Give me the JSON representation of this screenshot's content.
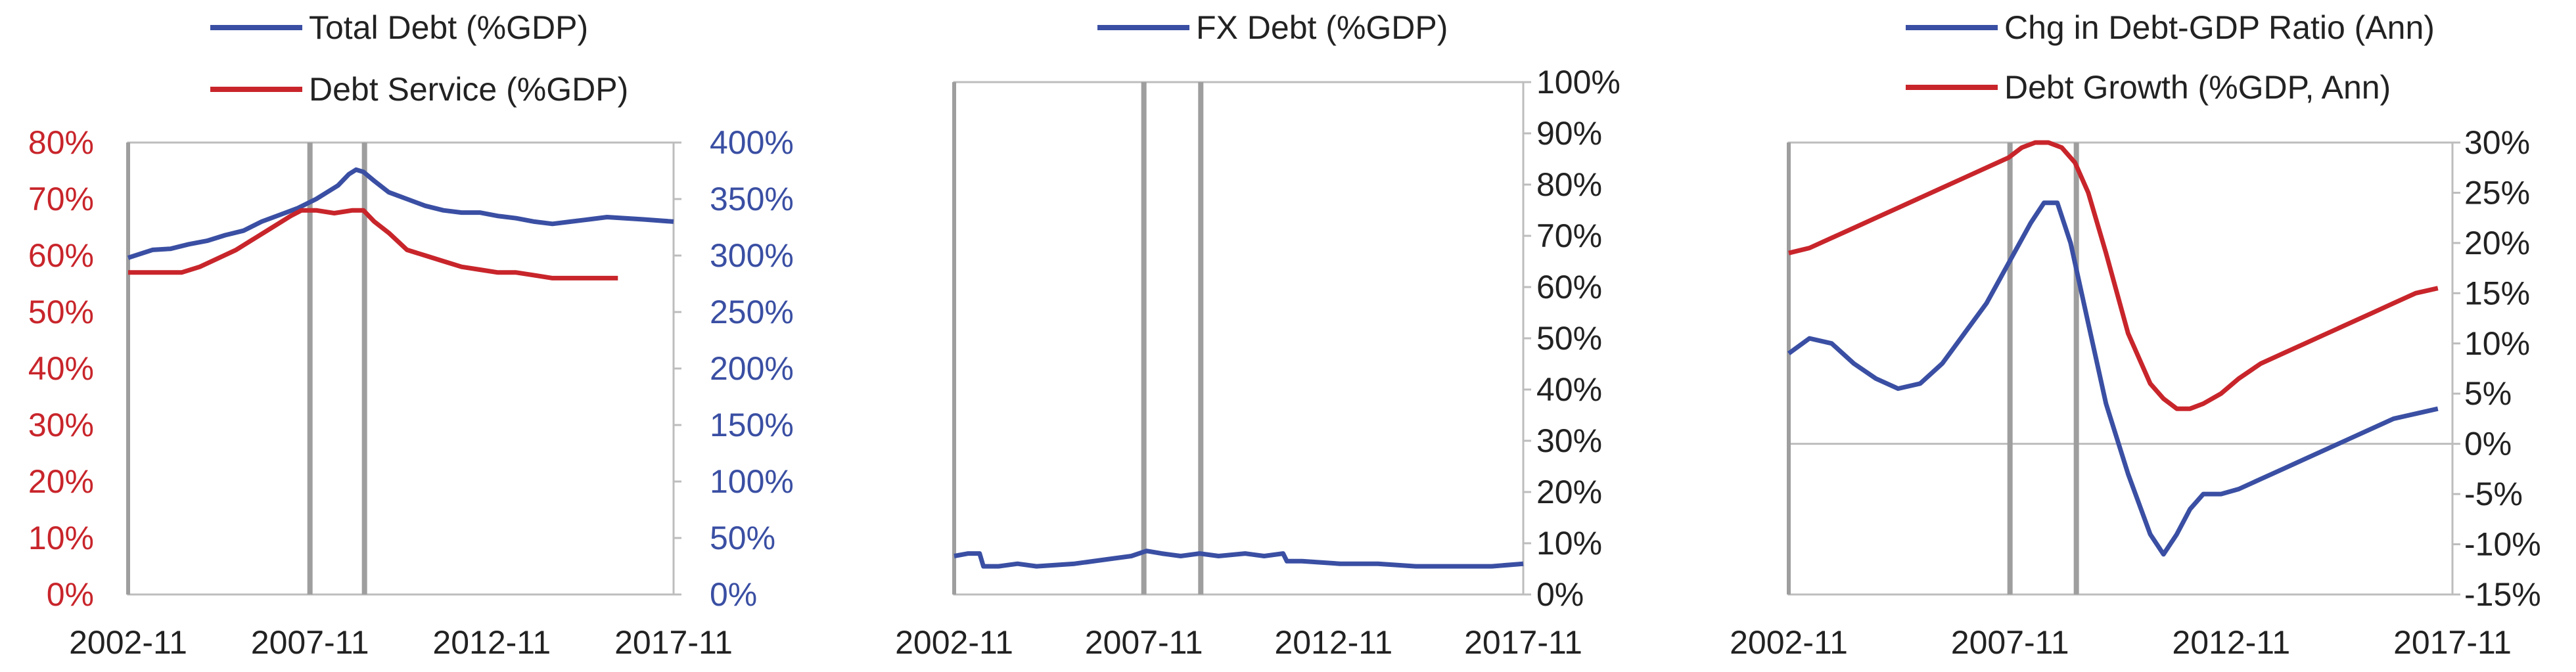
{
  "chart_data": [
    {
      "type": "line",
      "legend": [
        "Total Debt (%GDP)",
        "Debt Service (%GDP)"
      ],
      "left_axis": {
        "ticks": [
          "0%",
          "10%",
          "20%",
          "30%",
          "40%",
          "50%",
          "60%",
          "70%",
          "80%"
        ],
        "range": [
          0,
          80
        ]
      },
      "right_axis": {
        "ticks": [
          "0%",
          "50%",
          "100%",
          "150%",
          "200%",
          "250%",
          "300%",
          "350%",
          "400%"
        ],
        "range": [
          0,
          400
        ]
      },
      "x_ticks": [
        "2002-11",
        "2007-11",
        "2012-11",
        "2017-11"
      ],
      "x_range": [
        2002.83,
        2017.83
      ],
      "vlines": [
        2007.83,
        2009.33
      ],
      "series": [
        {
          "name": "Total Debt (%GDP)",
          "axis": "right",
          "color": "#3a4fa3",
          "x": [
            2002.83,
            2003.5,
            2004,
            2004.5,
            2005,
            2005.5,
            2006,
            2006.5,
            2007,
            2007.5,
            2008,
            2008.3,
            2008.6,
            2008.9,
            2009.1,
            2009.3,
            2009.6,
            2010,
            2010.5,
            2011,
            2011.5,
            2012,
            2012.5,
            2013,
            2013.5,
            2014,
            2014.5,
            2015,
            2015.5,
            2016,
            2016.5,
            2017,
            2017.83
          ],
          "y": [
            298,
            305,
            306,
            310,
            313,
            318,
            322,
            330,
            336,
            342,
            350,
            356,
            362,
            372,
            376,
            374,
            366,
            356,
            350,
            344,
            340,
            338,
            338,
            335,
            333,
            330,
            328,
            330,
            332,
            334,
            333,
            332,
            330
          ]
        },
        {
          "name": "Debt Service (%GDP)",
          "axis": "left",
          "color": "#c8252b",
          "x": [
            2002.83,
            2003.3,
            2003.8,
            2004.3,
            2004.8,
            2005.3,
            2005.8,
            2006.3,
            2006.8,
            2007.3,
            2007.6,
            2008,
            2008.5,
            2009,
            2009.3,
            2009.6,
            2010,
            2010.5,
            2011,
            2011.5,
            2012,
            2012.5,
            2013,
            2013.5,
            2014,
            2014.5,
            2015,
            2015.5,
            2016,
            2016.3
          ],
          "y": [
            57,
            57,
            57,
            57,
            58,
            59.5,
            61,
            63,
            65,
            67,
            68,
            68,
            67.5,
            68,
            68,
            66,
            64,
            61,
            60,
            59,
            58,
            57.5,
            57,
            57,
            56.5,
            56,
            56,
            56,
            56,
            56
          ]
        }
      ]
    },
    {
      "type": "line",
      "legend": [
        "FX Debt (%GDP)"
      ],
      "right_axis": {
        "ticks": [
          "0%",
          "10%",
          "20%",
          "30%",
          "40%",
          "50%",
          "60%",
          "70%",
          "80%",
          "90%",
          "100%"
        ],
        "range": [
          0,
          100
        ]
      },
      "x_ticks": [
        "2002-11",
        "2007-11",
        "2012-11",
        "2017-11"
      ],
      "x_range": [
        2002.83,
        2017.83
      ],
      "vlines": [
        2007.83,
        2009.33
      ],
      "series": [
        {
          "name": "FX Debt (%GDP)",
          "axis": "right",
          "color": "#3a4fa3",
          "x": [
            2002.83,
            2003.2,
            2003.5,
            2003.6,
            2004,
            2004.5,
            2005,
            2006,
            2007,
            2007.5,
            2007.9,
            2008.3,
            2008.8,
            2009.3,
            2009.8,
            2010.5,
            2011,
            2011.5,
            2011.6,
            2012,
            2013,
            2014,
            2015,
            2016,
            2017,
            2017.83
          ],
          "y": [
            7.5,
            8,
            8,
            5.5,
            5.5,
            6,
            5.5,
            6,
            7,
            7.5,
            8.5,
            8,
            7.5,
            8,
            7.5,
            8,
            7.5,
            8,
            6.5,
            6.5,
            6,
            6,
            5.5,
            5.5,
            5.5,
            6
          ]
        }
      ]
    },
    {
      "type": "line",
      "legend": [
        "Chg in Debt-GDP Ratio (Ann)",
        "Debt Growth (%GDP, Ann)"
      ],
      "right_axis": {
        "ticks": [
          "-15%",
          "-10%",
          "-5%",
          "0%",
          "5%",
          "10%",
          "15%",
          "20%",
          "25%",
          "30%"
        ],
        "range": [
          -15,
          30
        ]
      },
      "x_ticks": [
        "2002-11",
        "2007-11",
        "2012-11",
        "2017-11"
      ],
      "x_range": [
        2002.83,
        2017.83
      ],
      "vlines": [
        2007.83,
        2009.33
      ],
      "series": [
        {
          "name": "Chg in Debt-GDP Ratio (Ann)",
          "axis": "right",
          "color": "#3a4fa3",
          "x": [
            2002.83,
            2003.3,
            2003.8,
            2004.3,
            2004.8,
            2005.3,
            2005.8,
            2006.3,
            2006.8,
            2007.3,
            2007.8,
            2008.3,
            2008.6,
            2008.9,
            2009.2,
            2009.6,
            2010,
            2010.5,
            2011,
            2011.3,
            2011.6,
            2011.9,
            2012.2,
            2012.6,
            2013,
            2013.5,
            2014,
            2014.5,
            2015,
            2015.5,
            2016,
            2016.5,
            2017,
            2017.5
          ],
          "y": [
            9,
            10.5,
            10,
            8,
            6.5,
            5.5,
            6,
            8,
            11,
            14,
            18,
            22,
            24,
            24,
            20,
            12,
            4,
            -3,
            -9,
            -11,
            -9,
            -6.5,
            -5,
            -5,
            -4.5,
            -3.5,
            -2.5,
            -1.5,
            -0.5,
            0.5,
            1.5,
            2.5,
            3,
            3.5
          ]
        },
        {
          "name": "Debt Growth (%GDP, Ann)",
          "axis": "right",
          "color": "#c8252b",
          "x": [
            2002.83,
            2003.3,
            2003.8,
            2004.3,
            2004.8,
            2005.3,
            2005.8,
            2006.3,
            2006.8,
            2007.3,
            2007.8,
            2008.1,
            2008.4,
            2008.7,
            2009,
            2009.3,
            2009.6,
            2010,
            2010.5,
            2011,
            2011.3,
            2011.6,
            2011.9,
            2012.2,
            2012.6,
            2013,
            2013.5,
            2014,
            2014.5,
            2015,
            2015.5,
            2016,
            2016.5,
            2017,
            2017.5
          ],
          "y": [
            19,
            19.5,
            20.5,
            21.5,
            22.5,
            23.5,
            24.5,
            25.5,
            26.5,
            27.5,
            28.5,
            29.5,
            30,
            30,
            29.5,
            28,
            25,
            19,
            11,
            6,
            4.5,
            3.5,
            3.5,
            4,
            5,
            6.5,
            8,
            9,
            10,
            11,
            12,
            13,
            14,
            15,
            15.5
          ]
        }
      ]
    }
  ]
}
